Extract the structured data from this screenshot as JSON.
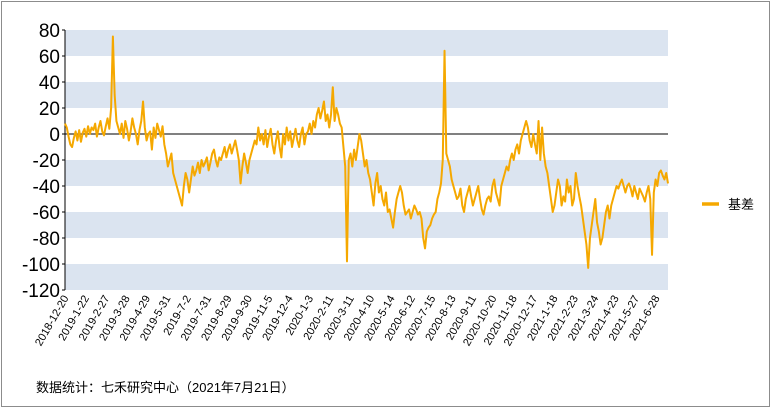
{
  "source_note": "数据统计：七禾研究中心（2021年7月21日）",
  "chart_data": {
    "type": "line",
    "title": "",
    "xlabel": "",
    "ylabel": "",
    "ylim": [
      -120,
      80
    ],
    "y_ticks": [
      80,
      60,
      40,
      20,
      0,
      -20,
      -40,
      -60,
      -80,
      -100,
      -120
    ],
    "banded_background": true,
    "band_color": "#dbe4f0",
    "zero_line": true,
    "legend_position": "right",
    "x_tick_labels": [
      "2018-12-20",
      "2019-1-22",
      "2019-2-27",
      "2019-3-28",
      "2019-4-29",
      "2019-5-31",
      "2019-7-2",
      "2019-7-31",
      "2019-8-29",
      "2019-9-30",
      "2019-11-5",
      "2019-12-4",
      "2020-1-3",
      "2020-2-11",
      "2020-3-11",
      "2020-4-10",
      "2020-5-14",
      "2020-6-12",
      "2020-7-15",
      "2020-8-13",
      "2020-9-11",
      "2020-10-20",
      "2020-11-18",
      "2020-12-17",
      "2021-1-18",
      "2021-2-23",
      "2021-3-24",
      "2021-4-23",
      "2021-5-27",
      "2021-6-28"
    ],
    "series": [
      {
        "name": "基差",
        "color": "#f5a800",
        "values": [
          8,
          5,
          -2,
          -8,
          -10,
          -3,
          2,
          -5,
          3,
          -6,
          1,
          4,
          -2,
          6,
          0,
          5,
          3,
          8,
          -2,
          5,
          10,
          2,
          -1,
          6,
          12,
          4,
          20,
          75,
          30,
          10,
          5,
          0,
          8,
          -3,
          10,
          4,
          -5,
          2,
          12,
          5,
          0,
          -8,
          3,
          10,
          25,
          5,
          -5,
          0,
          2,
          -12,
          5,
          -3,
          8,
          3,
          -2,
          6,
          -8,
          -15,
          -25,
          -20,
          -15,
          -30,
          -35,
          -40,
          -45,
          -50,
          -55,
          -40,
          -30,
          -35,
          -45,
          -35,
          -25,
          -32,
          -28,
          -22,
          -30,
          -20,
          -25,
          -22,
          -18,
          -28,
          -22,
          -15,
          -12,
          -20,
          -25,
          -18,
          -20,
          -15,
          -10,
          -18,
          -12,
          -8,
          -15,
          -10,
          -5,
          -12,
          -20,
          -38,
          -25,
          -15,
          -22,
          -30,
          -20,
          -15,
          -10,
          -5,
          -8,
          5,
          -5,
          0,
          -8,
          3,
          -10,
          -2,
          4,
          -8,
          -15,
          -5,
          2,
          -10,
          -18,
          0,
          -8,
          5,
          -5,
          2,
          -10,
          -3,
          4,
          -5,
          -10,
          0,
          5,
          -8,
          0,
          2,
          8,
          0,
          10,
          5,
          15,
          20,
          12,
          18,
          25,
          10,
          15,
          5,
          15,
          36,
          10,
          20,
          15,
          8,
          5,
          -10,
          -25,
          -98,
          -20,
          -15,
          -25,
          -12,
          -20,
          -10,
          0,
          -5,
          -15,
          -25,
          -20,
          -30,
          -35,
          -45,
          -55,
          -38,
          -30,
          -45,
          -40,
          -50,
          -55,
          -45,
          -60,
          -58,
          -65,
          -72,
          -60,
          -50,
          -45,
          -40,
          -45,
          -55,
          -62,
          -60,
          -58,
          -65,
          -60,
          -55,
          -58,
          -62,
          -60,
          -65,
          -80,
          -88,
          -75,
          -72,
          -70,
          -65,
          -62,
          -60,
          -50,
          -45,
          -38,
          -20,
          64,
          -15,
          -20,
          -25,
          -35,
          -40,
          -45,
          -50,
          -48,
          -42,
          -55,
          -60,
          -50,
          -45,
          -40,
          -48,
          -55,
          -50,
          -45,
          -40,
          -50,
          -58,
          -62,
          -55,
          -50,
          -48,
          -52,
          -40,
          -35,
          -45,
          -50,
          -55,
          -40,
          -35,
          -30,
          -25,
          -28,
          -20,
          -15,
          -20,
          -12,
          -8,
          -15,
          -5,
          0,
          5,
          10,
          5,
          -5,
          -10,
          0,
          -8,
          -15,
          10,
          -20,
          5,
          -15,
          -25,
          -30,
          -40,
          -50,
          -60,
          -55,
          -45,
          -35,
          -40,
          -55,
          -48,
          -52,
          -35,
          -45,
          -40,
          -55,
          -50,
          -30,
          -40,
          -48,
          -55,
          -65,
          -75,
          -85,
          -103,
          -80,
          -70,
          -60,
          -50,
          -68,
          -75,
          -85,
          -80,
          -70,
          -60,
          -55,
          -65,
          -55,
          -50,
          -45,
          -40,
          -42,
          -38,
          -35,
          -40,
          -45,
          -40,
          -38,
          -42,
          -48,
          -40,
          -45,
          -50,
          -42,
          -45,
          -48,
          -52,
          -45,
          -40,
          -50,
          -93,
          -45,
          -35,
          -40,
          -30,
          -28,
          -32,
          -35,
          -30,
          -38
        ]
      }
    ]
  }
}
